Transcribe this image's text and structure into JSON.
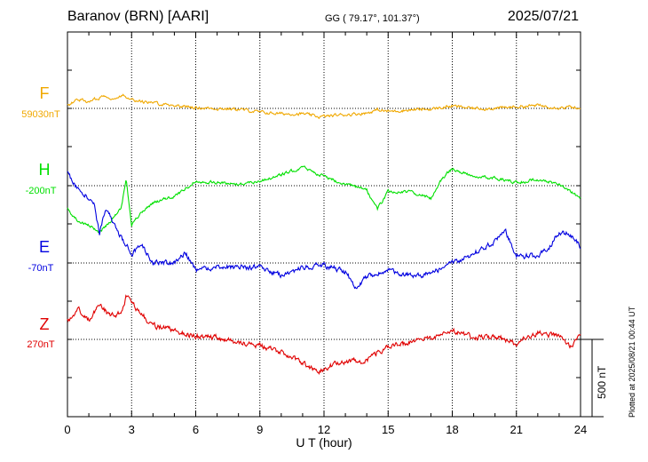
{
  "header": {
    "station": "Baranov (BRN)  [AARI]",
    "coords": "GG ( 79.17°, 101.37°)",
    "date": "2025/07/21"
  },
  "footer": {
    "plotted": "Plotted at 2025/08/21 00:44 UT"
  },
  "chart_data": {
    "type": "line",
    "title": "Baranov (BRN)  [AARI]",
    "xlabel": "U T (hour)",
    "xlim": [
      0,
      24
    ],
    "xticks": [
      "0",
      "3",
      "6",
      "9",
      "12",
      "15",
      "18",
      "21",
      "24"
    ],
    "scale_bar_nT": 500,
    "scale_label": "500 nT",
    "grid": true,
    "colors": {
      "F": "#f0a800",
      "H": "#00e000",
      "E": "#0000e0",
      "Z": "#e00000"
    },
    "components": [
      {
        "name": "F",
        "baseline_label": "59030nT",
        "baseline_nT": 59030,
        "x": [
          0,
          0.5,
          1,
          1.5,
          1.8,
          2.2,
          2.6,
          2.8,
          3.2,
          4,
          5,
          6,
          7,
          8,
          9,
          10,
          11,
          11.8,
          12.5,
          13,
          14,
          14.5,
          15,
          16,
          17,
          17.5,
          18,
          19,
          20,
          21,
          22,
          23,
          23.5,
          24
        ],
        "y": [
          20,
          60,
          40,
          70,
          85,
          55,
          90,
          75,
          50,
          35,
          20,
          5,
          0,
          -5,
          -25,
          -35,
          -35,
          -55,
          -45,
          -40,
          -30,
          -10,
          -20,
          -10,
          -5,
          5,
          15,
          0,
          0,
          10,
          20,
          5,
          10,
          -10
        ]
      },
      {
        "name": "H",
        "baseline_label": "-200nT",
        "baseline_nT": -200,
        "x": [
          0,
          0.5,
          1,
          1.5,
          2,
          2.5,
          2.75,
          3,
          3.5,
          4,
          5,
          6,
          7,
          8,
          9,
          10,
          11,
          11.5,
          12,
          13,
          14,
          14.5,
          15,
          16,
          17,
          17.5,
          18,
          19,
          20,
          21,
          22,
          23,
          24
        ],
        "y": [
          -150,
          -230,
          -260,
          -300,
          -230,
          -150,
          40,
          -250,
          -170,
          -110,
          -70,
          30,
          20,
          10,
          30,
          70,
          120,
          90,
          60,
          10,
          -30,
          -150,
          -40,
          -40,
          -80,
          40,
          110,
          60,
          50,
          20,
          40,
          10,
          -80
        ]
      },
      {
        "name": "E",
        "baseline_label": "-70nT",
        "baseline_nT": -70,
        "x": [
          0,
          0.5,
          1,
          1.25,
          1.5,
          1.75,
          2,
          2.5,
          3,
          3.5,
          4,
          5,
          5.5,
          6,
          7,
          8,
          9,
          10,
          11,
          12,
          13,
          13.5,
          14,
          15,
          16,
          17,
          18,
          19,
          20,
          20.5,
          21,
          22,
          22.5,
          23,
          23.5,
          24
        ],
        "y": [
          580,
          480,
          420,
          380,
          190,
          330,
          300,
          170,
          60,
          110,
          0,
          0,
          70,
          -50,
          -20,
          -30,
          -30,
          -80,
          -30,
          -10,
          -60,
          -160,
          -90,
          -50,
          -80,
          -70,
          0,
          60,
          140,
          200,
          50,
          40,
          100,
          200,
          190,
          100
        ]
      },
      {
        "name": "Z",
        "baseline_label": "270nT",
        "baseline_nT": 270,
        "x": [
          0,
          0.5,
          1,
          1.5,
          2,
          2.5,
          2.75,
          3,
          3.5,
          4,
          5,
          6,
          7,
          8,
          9,
          10,
          11,
          11.8,
          12.5,
          13,
          14,
          14.5,
          15,
          16,
          17,
          17.5,
          18,
          19,
          20,
          21,
          22,
          23,
          23.5,
          24
        ],
        "y": [
          120,
          200,
          120,
          230,
          150,
          170,
          280,
          230,
          160,
          90,
          60,
          20,
          10,
          -20,
          -40,
          -80,
          -160,
          -200,
          -160,
          -140,
          -140,
          -80,
          -50,
          -20,
          10,
          40,
          60,
          10,
          20,
          -30,
          40,
          20,
          -40,
          20
        ]
      }
    ]
  }
}
